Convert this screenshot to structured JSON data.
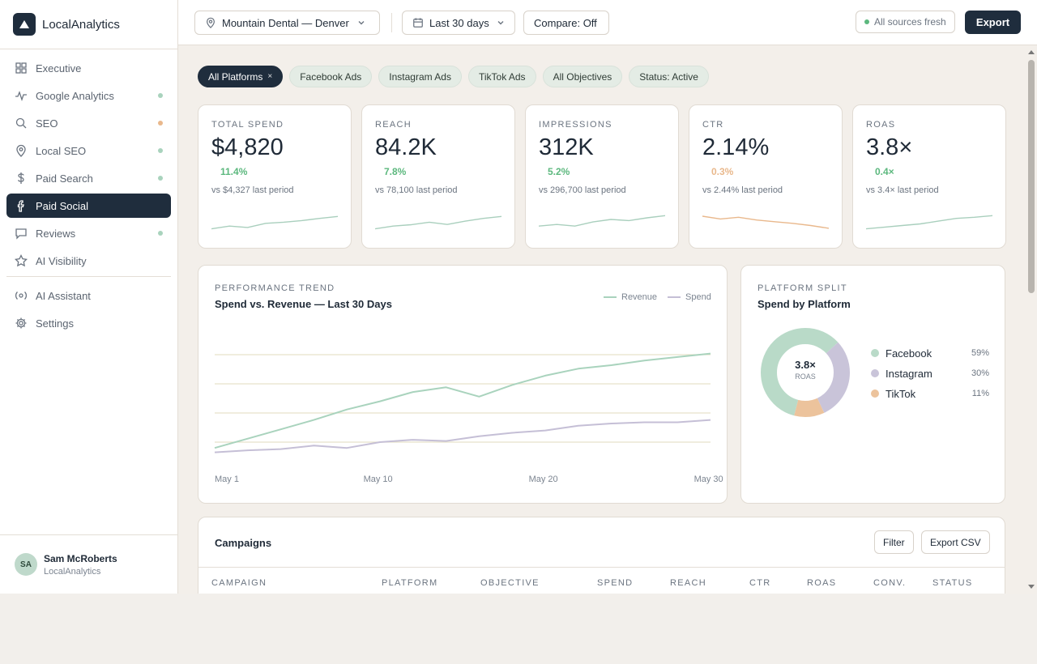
{
  "app": {
    "name": "LocalAnalytics"
  },
  "nav": [
    {
      "label": "Executive",
      "icon": "grid-icon",
      "dot": null,
      "active": false
    },
    {
      "label": "Google Analytics",
      "icon": "activity-icon",
      "dot": "#a9d3bd",
      "active": false
    },
    {
      "label": "SEO",
      "icon": "search-icon",
      "dot": "#e9b88c",
      "active": false
    },
    {
      "label": "Local SEO",
      "icon": "map-pin-icon",
      "dot": "#a9d3bd",
      "active": false
    },
    {
      "label": "Paid Search",
      "icon": "dollar-icon",
      "dot": "#a9d3bd",
      "active": false
    },
    {
      "label": "Paid Social",
      "icon": "facebook-icon",
      "dot": null,
      "active": true
    },
    {
      "label": "Reviews",
      "icon": "message-icon",
      "dot": "#a9d3bd",
      "active": false
    },
    {
      "label": "AI Visibility",
      "icon": "star-icon",
      "dot": null,
      "active": false
    }
  ],
  "nav_secondary": [
    {
      "label": "AI Assistant",
      "icon": "ai-assistant-icon"
    },
    {
      "label": "Settings",
      "icon": "gear-icon"
    }
  ],
  "user": {
    "initials": "SA",
    "name": "Sam McRoberts",
    "org": "LocalAnalytics"
  },
  "topbar": {
    "location": "Mountain Dental — Denver",
    "date_range": "Last 30 days",
    "compare": "Compare: Off",
    "freshness": "All sources fresh",
    "export": "Export"
  },
  "chips": [
    {
      "label": "All Platforms",
      "active": true,
      "removable": true,
      "remove_glyph": "×"
    },
    {
      "label": "Facebook Ads",
      "active": false
    },
    {
      "label": "Instagram Ads",
      "active": false
    },
    {
      "label": "TikTok Ads",
      "active": false
    },
    {
      "label": "All Objectives",
      "active": false
    },
    {
      "label": "Status: Active",
      "active": false
    }
  ],
  "kpis": [
    {
      "label": "TOTAL SPEND",
      "value": "$4,820",
      "delta": "11.4%",
      "delta_color": "#5cb87e",
      "previous": "vs $4,327 last period",
      "spark": [
        4,
        5,
        4.5,
        6,
        6.4,
        7,
        7.8,
        8.5
      ],
      "spark_color": "#a9cfbd"
    },
    {
      "label": "REACH",
      "value": "84.2K",
      "delta": "7.8%",
      "delta_color": "#5cb87e",
      "previous": "vs 78,100 last period",
      "spark": [
        4,
        5,
        5.5,
        6.4,
        5.6,
        6.8,
        7.8,
        8.5
      ],
      "spark_color": "#a9cfbd"
    },
    {
      "label": "IMPRESSIONS",
      "value": "312K",
      "delta": "5.2%",
      "delta_color": "#5cb87e",
      "previous": "vs 296,700 last period",
      "spark": [
        5,
        5.6,
        5,
        6.5,
        7.4,
        7,
        8,
        8.8
      ],
      "spark_color": "#a9cfbd"
    },
    {
      "label": "CTR",
      "value": "2.14%",
      "delta": "0.3%",
      "delta_color": "#e9b88c",
      "previous": "vs 2.44% last period",
      "spark": [
        8.6,
        7.6,
        8.2,
        7.2,
        6.6,
        6,
        5.2,
        4.2
      ],
      "spark_color": "#e9b88c"
    },
    {
      "label": "ROAS",
      "value": "3.8×",
      "delta": "0.4×",
      "delta_color": "#5cb87e",
      "previous": "vs 3.4× last period",
      "spark": [
        4,
        4.6,
        5.2,
        5.8,
        6.8,
        7.8,
        8.2,
        8.8
      ],
      "spark_color": "#a9cfbd"
    }
  ],
  "trend": {
    "eyebrow": "PERFORMANCE TREND",
    "title": "Spend vs. Revenue — Last 30 Days",
    "legend": [
      {
        "name": "Revenue",
        "color": "#a9d3bd"
      },
      {
        "name": "Spend",
        "color": "#c5bfd6"
      }
    ]
  },
  "split": {
    "eyebrow": "PLATFORM SPLIT",
    "title": "Spend by Platform",
    "center_value": "3.8×",
    "center_label": "ROAS"
  },
  "chart_data": [
    {
      "type": "line",
      "title": "Spend vs. Revenue — Last 30 Days",
      "x": [
        1,
        3,
        5,
        7,
        9,
        11,
        13,
        15,
        17,
        19,
        21,
        23,
        25,
        27,
        29,
        31
      ],
      "x_ticks": [
        {
          "x": 1,
          "label": "May 1"
        },
        {
          "x": 10,
          "label": "May 10"
        },
        {
          "x": 20,
          "label": "May 20"
        },
        {
          "x": 30,
          "label": "May 30"
        }
      ],
      "series": [
        {
          "name": "Revenue",
          "color": "#a9d3bd",
          "values": [
            16,
            22.4,
            28.8,
            35.2,
            42.4,
            48,
            54.4,
            57.6,
            51.2,
            59.2,
            65.6,
            70.4,
            72.8,
            76,
            78.4,
            80.8
          ]
        },
        {
          "name": "Spend",
          "color": "#c5bfd6",
          "values": [
            13,
            14.4,
            15.2,
            17.6,
            16,
            20,
            21.6,
            20.8,
            24,
            26.4,
            28,
            31.2,
            32.8,
            33.6,
            33.6,
            35.2
          ]
        }
      ],
      "y_range": [
        0,
        100
      ],
      "gridlines": [
        20,
        40,
        60,
        80
      ],
      "grid": true,
      "legend_position": "top-right"
    },
    {
      "type": "pie",
      "title": "Spend by Platform",
      "series": [
        {
          "name": "Facebook",
          "value": 59,
          "label": "59%",
          "color": "#b9dac8"
        },
        {
          "name": "Instagram",
          "value": 30,
          "label": "30%",
          "color": "#c9c4d9"
        },
        {
          "name": "TikTok",
          "value": 11,
          "label": "11%",
          "color": "#ecc39c"
        }
      ]
    }
  ],
  "campaigns": {
    "title": "Campaigns",
    "filter": "Filter",
    "export_csv": "Export CSV",
    "columns": [
      "CAMPAIGN",
      "PLATFORM",
      "OBJECTIVE",
      "SPEND",
      "REACH",
      "CTR",
      "ROAS",
      "CONV.",
      "STATUS"
    ]
  }
}
